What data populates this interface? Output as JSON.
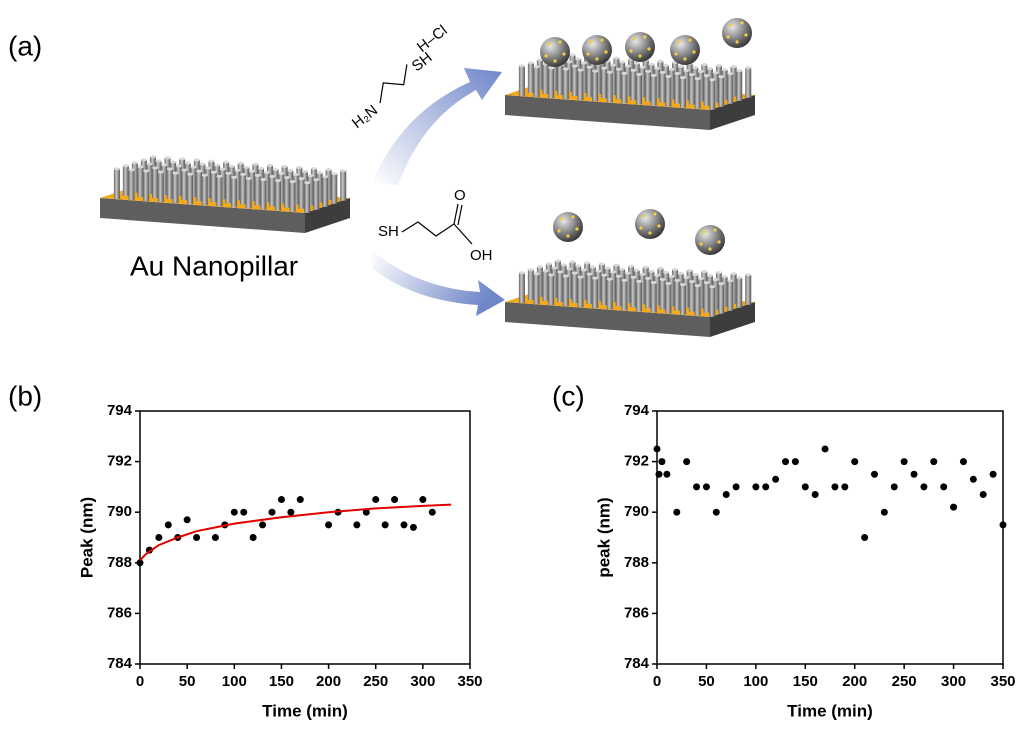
{
  "panel_labels": [
    "(a)",
    "(b)",
    "(c)"
  ],
  "diagram": {
    "substrate_label": "Au Nanopillar",
    "top_reagent": [
      "H₂N",
      "SH",
      "H–Cl"
    ],
    "bottom_reagent": [
      "SH",
      "O",
      "OH"
    ]
  },
  "chart_data": [
    {
      "type": "scatter",
      "xlabel": "Time (min)",
      "ylabel": "Peak (nm)",
      "xlim": [
        0,
        350
      ],
      "xticks": [
        0,
        50,
        100,
        150,
        200,
        250,
        300,
        350
      ],
      "ylim": [
        784,
        794
      ],
      "yticks": [
        784,
        786,
        788,
        790,
        792,
        794
      ],
      "series": [
        {
          "color": "#000000",
          "x": [
            0,
            10,
            20,
            30,
            40,
            50,
            60,
            80,
            90,
            100,
            110,
            120,
            130,
            140,
            150,
            160,
            170,
            200,
            210,
            230,
            240,
            250,
            260,
            270,
            280,
            290,
            300,
            310
          ],
          "values": [
            788,
            788.5,
            789,
            789.5,
            789,
            789.7,
            789,
            789,
            789.5,
            790,
            790,
            789,
            789.5,
            790,
            790.5,
            790,
            790.5,
            789.5,
            790,
            789.5,
            790,
            790.5,
            789.5,
            790.5,
            789.5,
            789.4,
            790.5,
            790
          ]
        },
        {
          "color": "#e00000",
          "line": true,
          "x": [
            0,
            5,
            10,
            20,
            40,
            60,
            80,
            100,
            150,
            200,
            250,
            300,
            330
          ],
          "values": [
            788.1,
            788.3,
            788.45,
            788.7,
            789.0,
            789.25,
            789.4,
            789.55,
            789.8,
            790.0,
            790.15,
            790.25,
            790.3
          ]
        }
      ]
    },
    {
      "type": "scatter",
      "xlabel": "Time (min)",
      "ylabel": "peak (nm)",
      "xlim": [
        0,
        350
      ],
      "xticks": [
        0,
        50,
        100,
        150,
        200,
        250,
        300,
        350
      ],
      "ylim": [
        784,
        794
      ],
      "yticks": [
        784,
        786,
        788,
        790,
        792,
        794
      ],
      "series": [
        {
          "color": "#000000",
          "x": [
            0,
            2,
            5,
            10,
            20,
            30,
            40,
            50,
            60,
            70,
            80,
            100,
            110,
            120,
            130,
            140,
            150,
            160,
            170,
            180,
            190,
            200,
            210,
            220,
            230,
            240,
            250,
            260,
            270,
            280,
            290,
            300,
            310,
            320,
            330,
            340,
            350
          ],
          "values": [
            792.5,
            791.5,
            792,
            791.5,
            790,
            792,
            791,
            791,
            790,
            790.7,
            791,
            791,
            791,
            791.3,
            792,
            792,
            791,
            790.7,
            792.5,
            791,
            791,
            792,
            789,
            791.5,
            790,
            791,
            792,
            791.5,
            791,
            792,
            791,
            790.2,
            792,
            791.3,
            790.7,
            791.5,
            789.5
          ]
        }
      ]
    }
  ]
}
